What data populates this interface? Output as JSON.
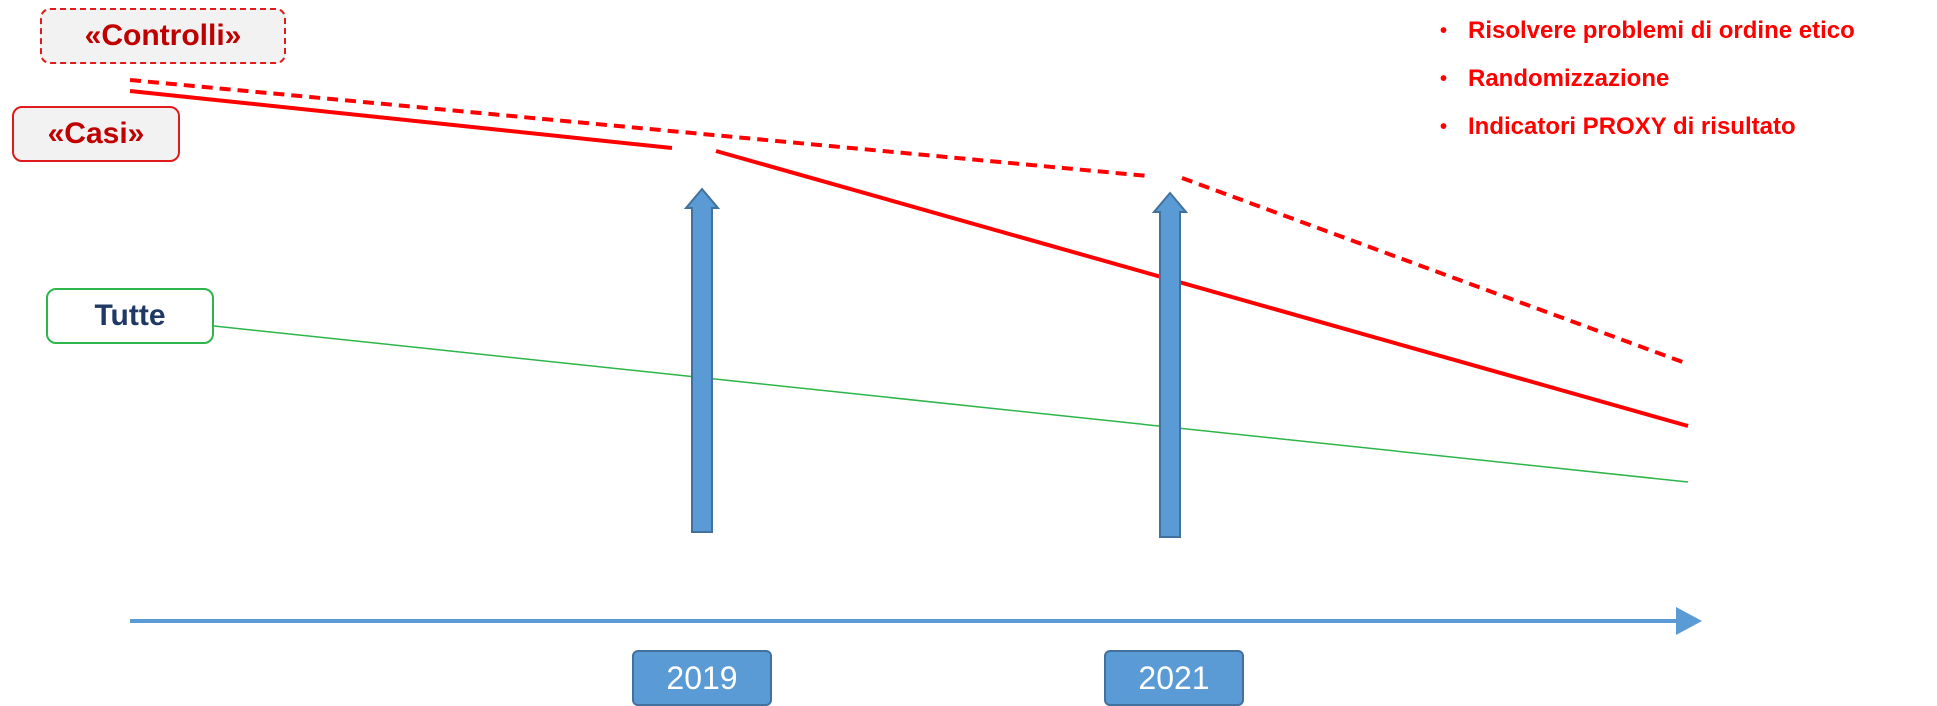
{
  "labels": {
    "controlli": "«Controlli»",
    "casi": "«Casi»",
    "tutte": "Tutte"
  },
  "years": [
    "2019",
    "2021"
  ],
  "notes": [
    "Risolvere problemi di ordine etico",
    "Randomizzazione",
    "Indicatori PROXY di risultato"
  ],
  "colors": {
    "red": "#ff0000",
    "green": "#2db54a",
    "blue": "#5b9bd5",
    "navy": "#1f3864"
  }
}
